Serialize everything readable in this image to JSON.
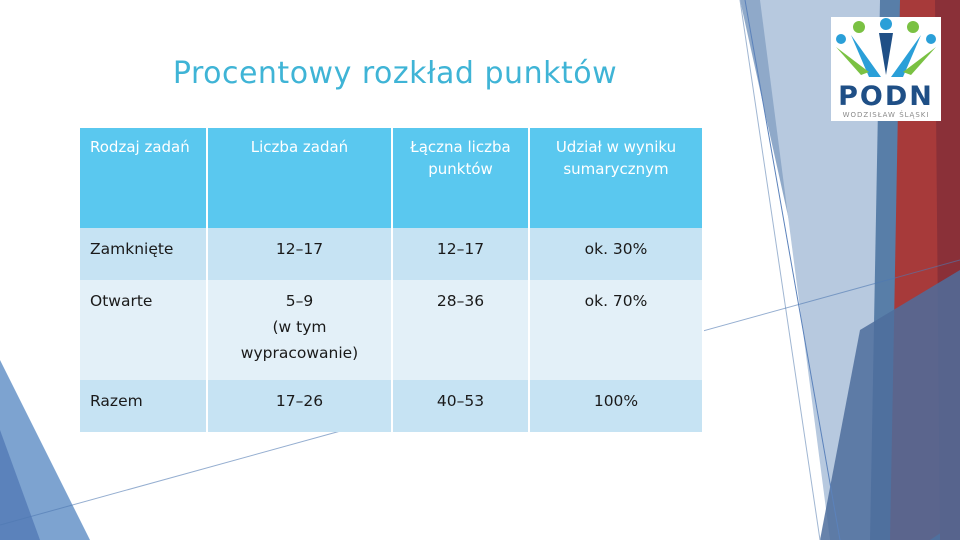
{
  "title": "Procentowy rozkład punktów",
  "logo": {
    "name": "PODN",
    "sub": "WODZISŁAW ŚLĄSKI"
  },
  "table": {
    "headers": [
      "Rodzaj zadań",
      "Liczba zadań",
      "Łączna liczba punktów",
      "Udział w wyniku sumarycznym"
    ],
    "rows": [
      {
        "type": "Zamknięte",
        "count": "12–17",
        "points": "12–17",
        "share": "ok. 30%"
      },
      {
        "type": "Otwarte",
        "count_line1": "5–9",
        "count_line2": "(w tym",
        "count_line3": "wypracowanie)",
        "points": "28–36",
        "share": "ok. 70%"
      },
      {
        "type": "Razem",
        "count": "17–26",
        "points": "40–53",
        "share": "100%"
      }
    ]
  },
  "colors": {
    "title": "#3fb4d6",
    "header_bg": "#5ac8ef",
    "row_dark": "#c6e3f3",
    "row_light": "#e3f0f8",
    "accent_red": "#a73a3a",
    "accent_blue": "#4f79b2"
  }
}
